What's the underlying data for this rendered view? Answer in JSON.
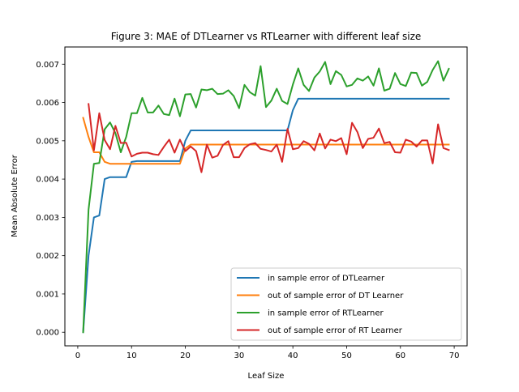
{
  "chart_data": {
    "type": "line",
    "title": "Figure 3: MAE of DTLearner vs RTLearner with different leaf size",
    "xlabel": "Leaf Size",
    "ylabel": "Mean Absolute Error",
    "xlim": [
      -2.4,
      72.4
    ],
    "ylim": [
      -0.000355,
      0.00745
    ],
    "xticks": [
      0,
      10,
      20,
      30,
      40,
      50,
      60,
      70
    ],
    "xtick_labels": [
      "0",
      "10",
      "20",
      "30",
      "40",
      "50",
      "60",
      "70"
    ],
    "yticks": [
      0,
      0.001,
      0.002,
      0.003,
      0.004,
      0.005,
      0.006,
      0.007
    ],
    "ytick_labels": [
      "0.000",
      "0.001",
      "0.002",
      "0.003",
      "0.004",
      "0.005",
      "0.006",
      "0.007"
    ],
    "legend_position": "lower right",
    "x": [
      1,
      2,
      3,
      4,
      5,
      6,
      7,
      8,
      9,
      10,
      11,
      12,
      13,
      14,
      15,
      16,
      17,
      18,
      19,
      20,
      21,
      22,
      23,
      24,
      25,
      26,
      27,
      28,
      29,
      30,
      31,
      32,
      33,
      34,
      35,
      36,
      37,
      38,
      39,
      40,
      41,
      42,
      43,
      44,
      45,
      46,
      47,
      48,
      49,
      50,
      51,
      52,
      53,
      54,
      55,
      56,
      57,
      58,
      59,
      60,
      61,
      62,
      63,
      64,
      65,
      66,
      67,
      68,
      69
    ],
    "series": [
      {
        "name": "in sample error of DTLearner",
        "color": "#1f77b4",
        "values": [
          0.0,
          0.002,
          0.003,
          0.00305,
          0.004,
          0.00405,
          0.00405,
          0.00405,
          0.00405,
          0.00445,
          0.00447,
          0.00447,
          0.00447,
          0.00447,
          0.00447,
          0.00447,
          0.00447,
          0.00447,
          0.00447,
          0.005,
          0.00527,
          0.00527,
          0.00527,
          0.00527,
          0.00527,
          0.00527,
          0.00527,
          0.00527,
          0.00527,
          0.00527,
          0.00527,
          0.00527,
          0.00527,
          0.00527,
          0.00527,
          0.00527,
          0.00527,
          0.00527,
          0.00527,
          0.0058,
          0.0061,
          0.0061,
          0.0061,
          0.0061,
          0.0061,
          0.0061,
          0.0061,
          0.0061,
          0.0061,
          0.0061,
          0.0061,
          0.0061,
          0.0061,
          0.0061,
          0.0061,
          0.0061,
          0.0061,
          0.0061,
          0.0061,
          0.0061,
          0.0061,
          0.0061,
          0.0061,
          0.0061,
          0.0061,
          0.0061,
          0.0061,
          0.0061,
          0.0061
        ]
      },
      {
        "name": "out of sample error of DT Learner",
        "color": "#ff7f0e",
        "values": [
          0.0056,
          0.0051,
          0.0047,
          0.0047,
          0.00445,
          0.0044,
          0.0044,
          0.0044,
          0.0044,
          0.0044,
          0.0044,
          0.0044,
          0.0044,
          0.0044,
          0.0044,
          0.0044,
          0.0044,
          0.0044,
          0.0044,
          0.0048,
          0.0049,
          0.0049,
          0.0049,
          0.0049,
          0.0049,
          0.0049,
          0.0049,
          0.0049,
          0.0049,
          0.0049,
          0.0049,
          0.0049,
          0.0049,
          0.0049,
          0.0049,
          0.0049,
          0.0049,
          0.0049,
          0.0049,
          0.0049,
          0.0049,
          0.0049,
          0.0049,
          0.0049,
          0.0049,
          0.0049,
          0.0049,
          0.0049,
          0.0049,
          0.0049,
          0.0049,
          0.0049,
          0.0049,
          0.0049,
          0.0049,
          0.0049,
          0.0049,
          0.0049,
          0.0049,
          0.0049,
          0.0049,
          0.0049,
          0.0049,
          0.0049,
          0.0049,
          0.0049,
          0.0049,
          0.0049,
          0.0049
        ]
      },
      {
        "name": "in sample error of RTLearner",
        "color": "#2ca02c",
        "values": [
          0.0,
          0.0032,
          0.0044,
          0.00442,
          0.0053,
          0.00548,
          0.0052,
          0.0047,
          0.0051,
          0.00572,
          0.00572,
          0.00612,
          0.00574,
          0.00574,
          0.00592,
          0.0057,
          0.00567,
          0.0061,
          0.00564,
          0.00621,
          0.00622,
          0.00587,
          0.00634,
          0.00632,
          0.00636,
          0.00622,
          0.00623,
          0.00632,
          0.00617,
          0.00585,
          0.00646,
          0.00627,
          0.00618,
          0.00695,
          0.00588,
          0.00605,
          0.00636,
          0.00604,
          0.00596,
          0.00647,
          0.00689,
          0.00646,
          0.0063,
          0.00665,
          0.00681,
          0.00706,
          0.00648,
          0.00682,
          0.00672,
          0.00642,
          0.00646,
          0.00663,
          0.00657,
          0.00668,
          0.00644,
          0.00689,
          0.00631,
          0.00636,
          0.00677,
          0.00648,
          0.00643,
          0.00678,
          0.00677,
          0.00644,
          0.00654,
          0.00685,
          0.00708,
          0.00657,
          0.00688
        ]
      },
      {
        "name": "out of sample error of RT Learner",
        "color": "#d62728",
        "values": [
          null,
          0.00596,
          0.00475,
          0.00572,
          0.00502,
          0.00478,
          0.00539,
          0.00494,
          0.00495,
          0.00459,
          0.00466,
          0.00469,
          0.00469,
          0.00465,
          0.00463,
          0.00484,
          0.00503,
          0.00469,
          0.00503,
          0.00473,
          0.00485,
          0.00473,
          0.00418,
          0.0049,
          0.00456,
          0.00461,
          0.00489,
          0.00499,
          0.00457,
          0.00457,
          0.00481,
          0.00491,
          0.00494,
          0.00479,
          0.00476,
          0.00472,
          0.0049,
          0.00445,
          0.00531,
          0.00478,
          0.00481,
          0.00499,
          0.00492,
          0.00475,
          0.00519,
          0.0048,
          0.00503,
          0.00499,
          0.00507,
          0.00465,
          0.00547,
          0.00523,
          0.00481,
          0.00505,
          0.00508,
          0.00532,
          0.00494,
          0.00497,
          0.0047,
          0.00469,
          0.00503,
          0.00498,
          0.00485,
          0.00501,
          0.00501,
          0.00441,
          0.00543,
          0.00481,
          0.00476
        ]
      }
    ]
  }
}
